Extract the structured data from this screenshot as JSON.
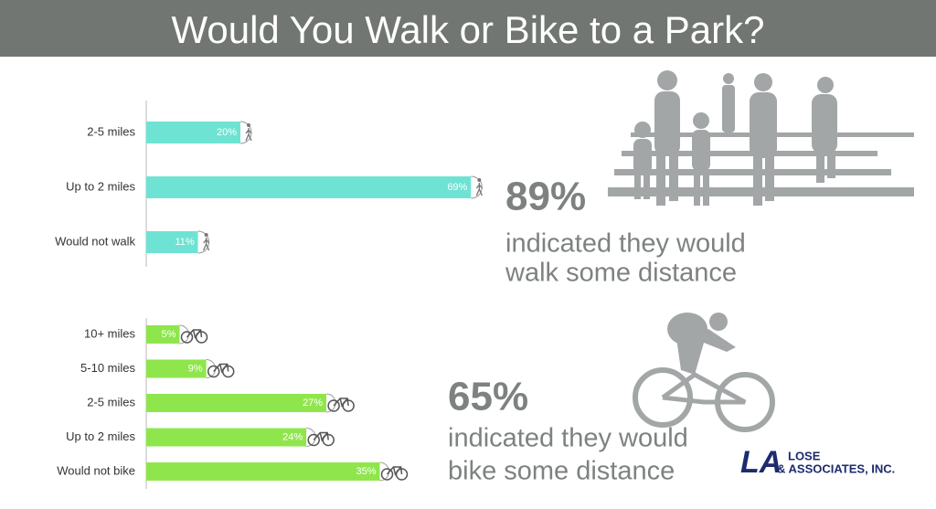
{
  "header": {
    "title": "Would You Walk or Bike to a Park?"
  },
  "chart_data": [
    {
      "type": "bar",
      "categories": [
        "2-5 miles",
        "Up to 2 miles",
        "Would not walk"
      ],
      "values": [
        20,
        69,
        11
      ],
      "value_labels": [
        "20%",
        "69%",
        "11%"
      ],
      "color": "#6ee3d3"
    },
    {
      "type": "bar",
      "categories": [
        "10+ miles",
        "5-10 miles",
        "2-5 miles",
        "Up to 2 miles",
        "Would not bike"
      ],
      "values": [
        5,
        9,
        27,
        24,
        35
      ],
      "value_labels": [
        "5%",
        "9%",
        "27%",
        "24%",
        "35%"
      ],
      "color": "#8fe64c"
    }
  ],
  "callouts": [
    {
      "figure": "89%",
      "lines": [
        "indicated they would",
        "walk some distance"
      ]
    },
    {
      "figure": "65%",
      "lines": [
        "indicated they would",
        "bike some distance"
      ]
    }
  ],
  "logo": {
    "mark": "LA",
    "name": "LOSE",
    "subname": "& ASSOCIATES, INC."
  }
}
